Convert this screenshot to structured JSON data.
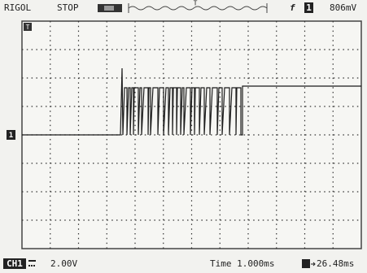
{
  "header": {
    "brand": "RIGOL",
    "status": "STOP",
    "trigger_position": "T",
    "trigger_source": "1",
    "trigger_level": "806mV"
  },
  "screen": {
    "channel_marker": "1",
    "trigger_marker": "T"
  },
  "footer": {
    "channel": "CH1",
    "scale": "2.00V",
    "timebase": "Time 1.000ms",
    "offset": "26.48ms"
  }
}
